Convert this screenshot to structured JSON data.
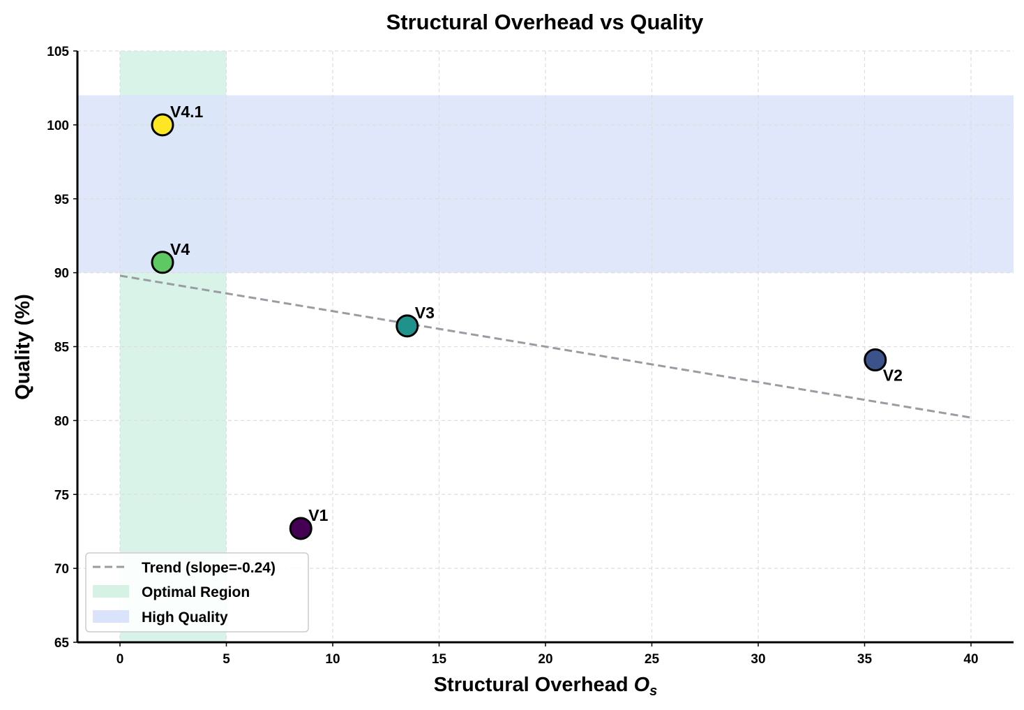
{
  "chart_data": {
    "type": "scatter",
    "title": "Structural Overhead vs Quality",
    "xlabel": "Structural Overhead ",
    "xlabel_math": "O",
    "xlabel_sub": "s",
    "ylabel": "Quality (%)",
    "xlim": [
      -2,
      42
    ],
    "ylim": [
      65,
      105
    ],
    "xticks": [
      0,
      5,
      10,
      15,
      20,
      25,
      30,
      35,
      40
    ],
    "yticks": [
      65,
      70,
      75,
      80,
      85,
      90,
      95,
      100,
      105
    ],
    "grid": true,
    "points": [
      {
        "label": "V1",
        "x": 8.5,
        "y": 72.7,
        "color": "#440154",
        "label_position": "above-right"
      },
      {
        "label": "V2",
        "x": 35.5,
        "y": 84.1,
        "color": "#3b528b",
        "label_position": "below-right"
      },
      {
        "label": "V3",
        "x": 13.5,
        "y": 86.4,
        "color": "#21918c",
        "label_position": "above-right"
      },
      {
        "label": "V4",
        "x": 2.0,
        "y": 90.7,
        "color": "#5ec962",
        "label_position": "above-right"
      },
      {
        "label": "V4.1",
        "x": 2.0,
        "y": 100.0,
        "color": "#fde725",
        "label_position": "above-right"
      }
    ],
    "trend": {
      "x": [
        0,
        40
      ],
      "y": [
        89.8,
        80.2
      ],
      "slope": -0.24,
      "color": "#9a9ca3"
    },
    "regions": {
      "optimal": {
        "x": [
          0,
          5
        ],
        "color": "#d5f2e5"
      },
      "high_quality": {
        "y": [
          90,
          102
        ],
        "color": "#dbe3fa"
      }
    },
    "legend": {
      "placement": "lower-left",
      "entries": [
        "Trend (slope=-0.24)",
        "Optimal Region",
        "High Quality"
      ]
    }
  }
}
